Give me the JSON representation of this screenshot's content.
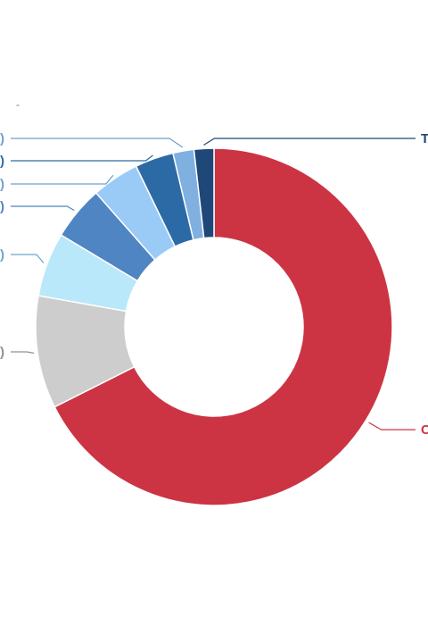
{
  "chart_data": {
    "type": "pie",
    "donut": true,
    "title": "",
    "start_angle_deg": 0,
    "direction": "clockwise",
    "slices": [
      {
        "value": 67.6,
        "color": "#cc3444",
        "label": "C",
        "label_color": "#cc3444"
      },
      {
        "value": 10.2,
        "color": "#cdcdcd",
        "label": ")",
        "label_color": "#909090"
      },
      {
        "value": 5.8,
        "color": "#b8e8fa",
        "label": ")",
        "label_color": "#6aa6c8"
      },
      {
        "value": 4.9,
        "color": "#4f85c2",
        "label": ")",
        "label_color": "#4f85c2"
      },
      {
        "value": 4.3,
        "color": "#9acbf7",
        "label": ")",
        "label_color": "#6f9fcf"
      },
      {
        "value": 3.5,
        "color": "#2c6aa5",
        "label": ")",
        "label_color": "#2c6aa5"
      },
      {
        "value": 1.9,
        "color": "#7fb0e0",
        "label": ")",
        "label_color": "#6f9fcf"
      },
      {
        "value": 1.8,
        "color": "#1f4878",
        "label": "T",
        "label_color": "#1f4878"
      }
    ],
    "stray_mark": "-"
  }
}
